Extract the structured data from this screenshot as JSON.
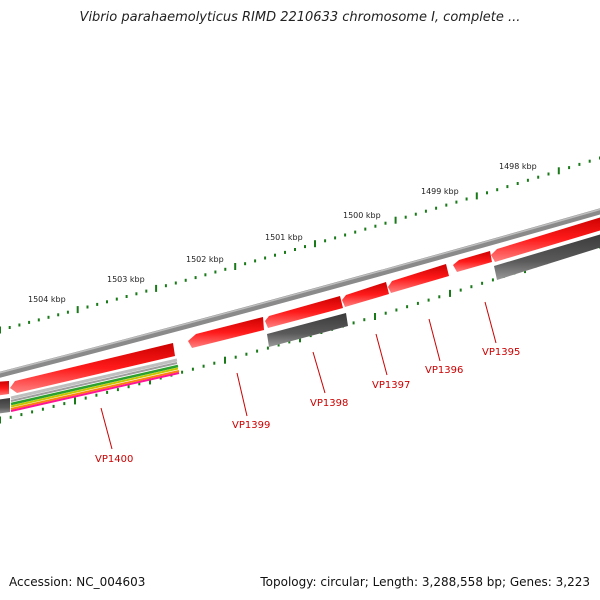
{
  "title": "Vibrio parahaemolyticus RIMD 2210633 chromosome I, complete ...",
  "footer": {
    "accession": "Accession: NC_004603",
    "summary": "Topology: circular; Length: 3,288,558 bp; Genes: 3,223"
  },
  "ruler": {
    "ticks": [
      "1498 kbp",
      "1499 kbp",
      "1500 kbp",
      "1501 kbp",
      "1502 kbp",
      "1503 kbp",
      "1504 kbp"
    ]
  },
  "genes": [
    "VP1395",
    "VP1396",
    "VP1397",
    "VP1398",
    "VP1399",
    "VP1400"
  ],
  "colors": {
    "forward": "#ff0000",
    "reverse": "#555555",
    "backbone": "#7a7a7a",
    "ruler": "#1a7a1a",
    "label": "#cc0000"
  }
}
